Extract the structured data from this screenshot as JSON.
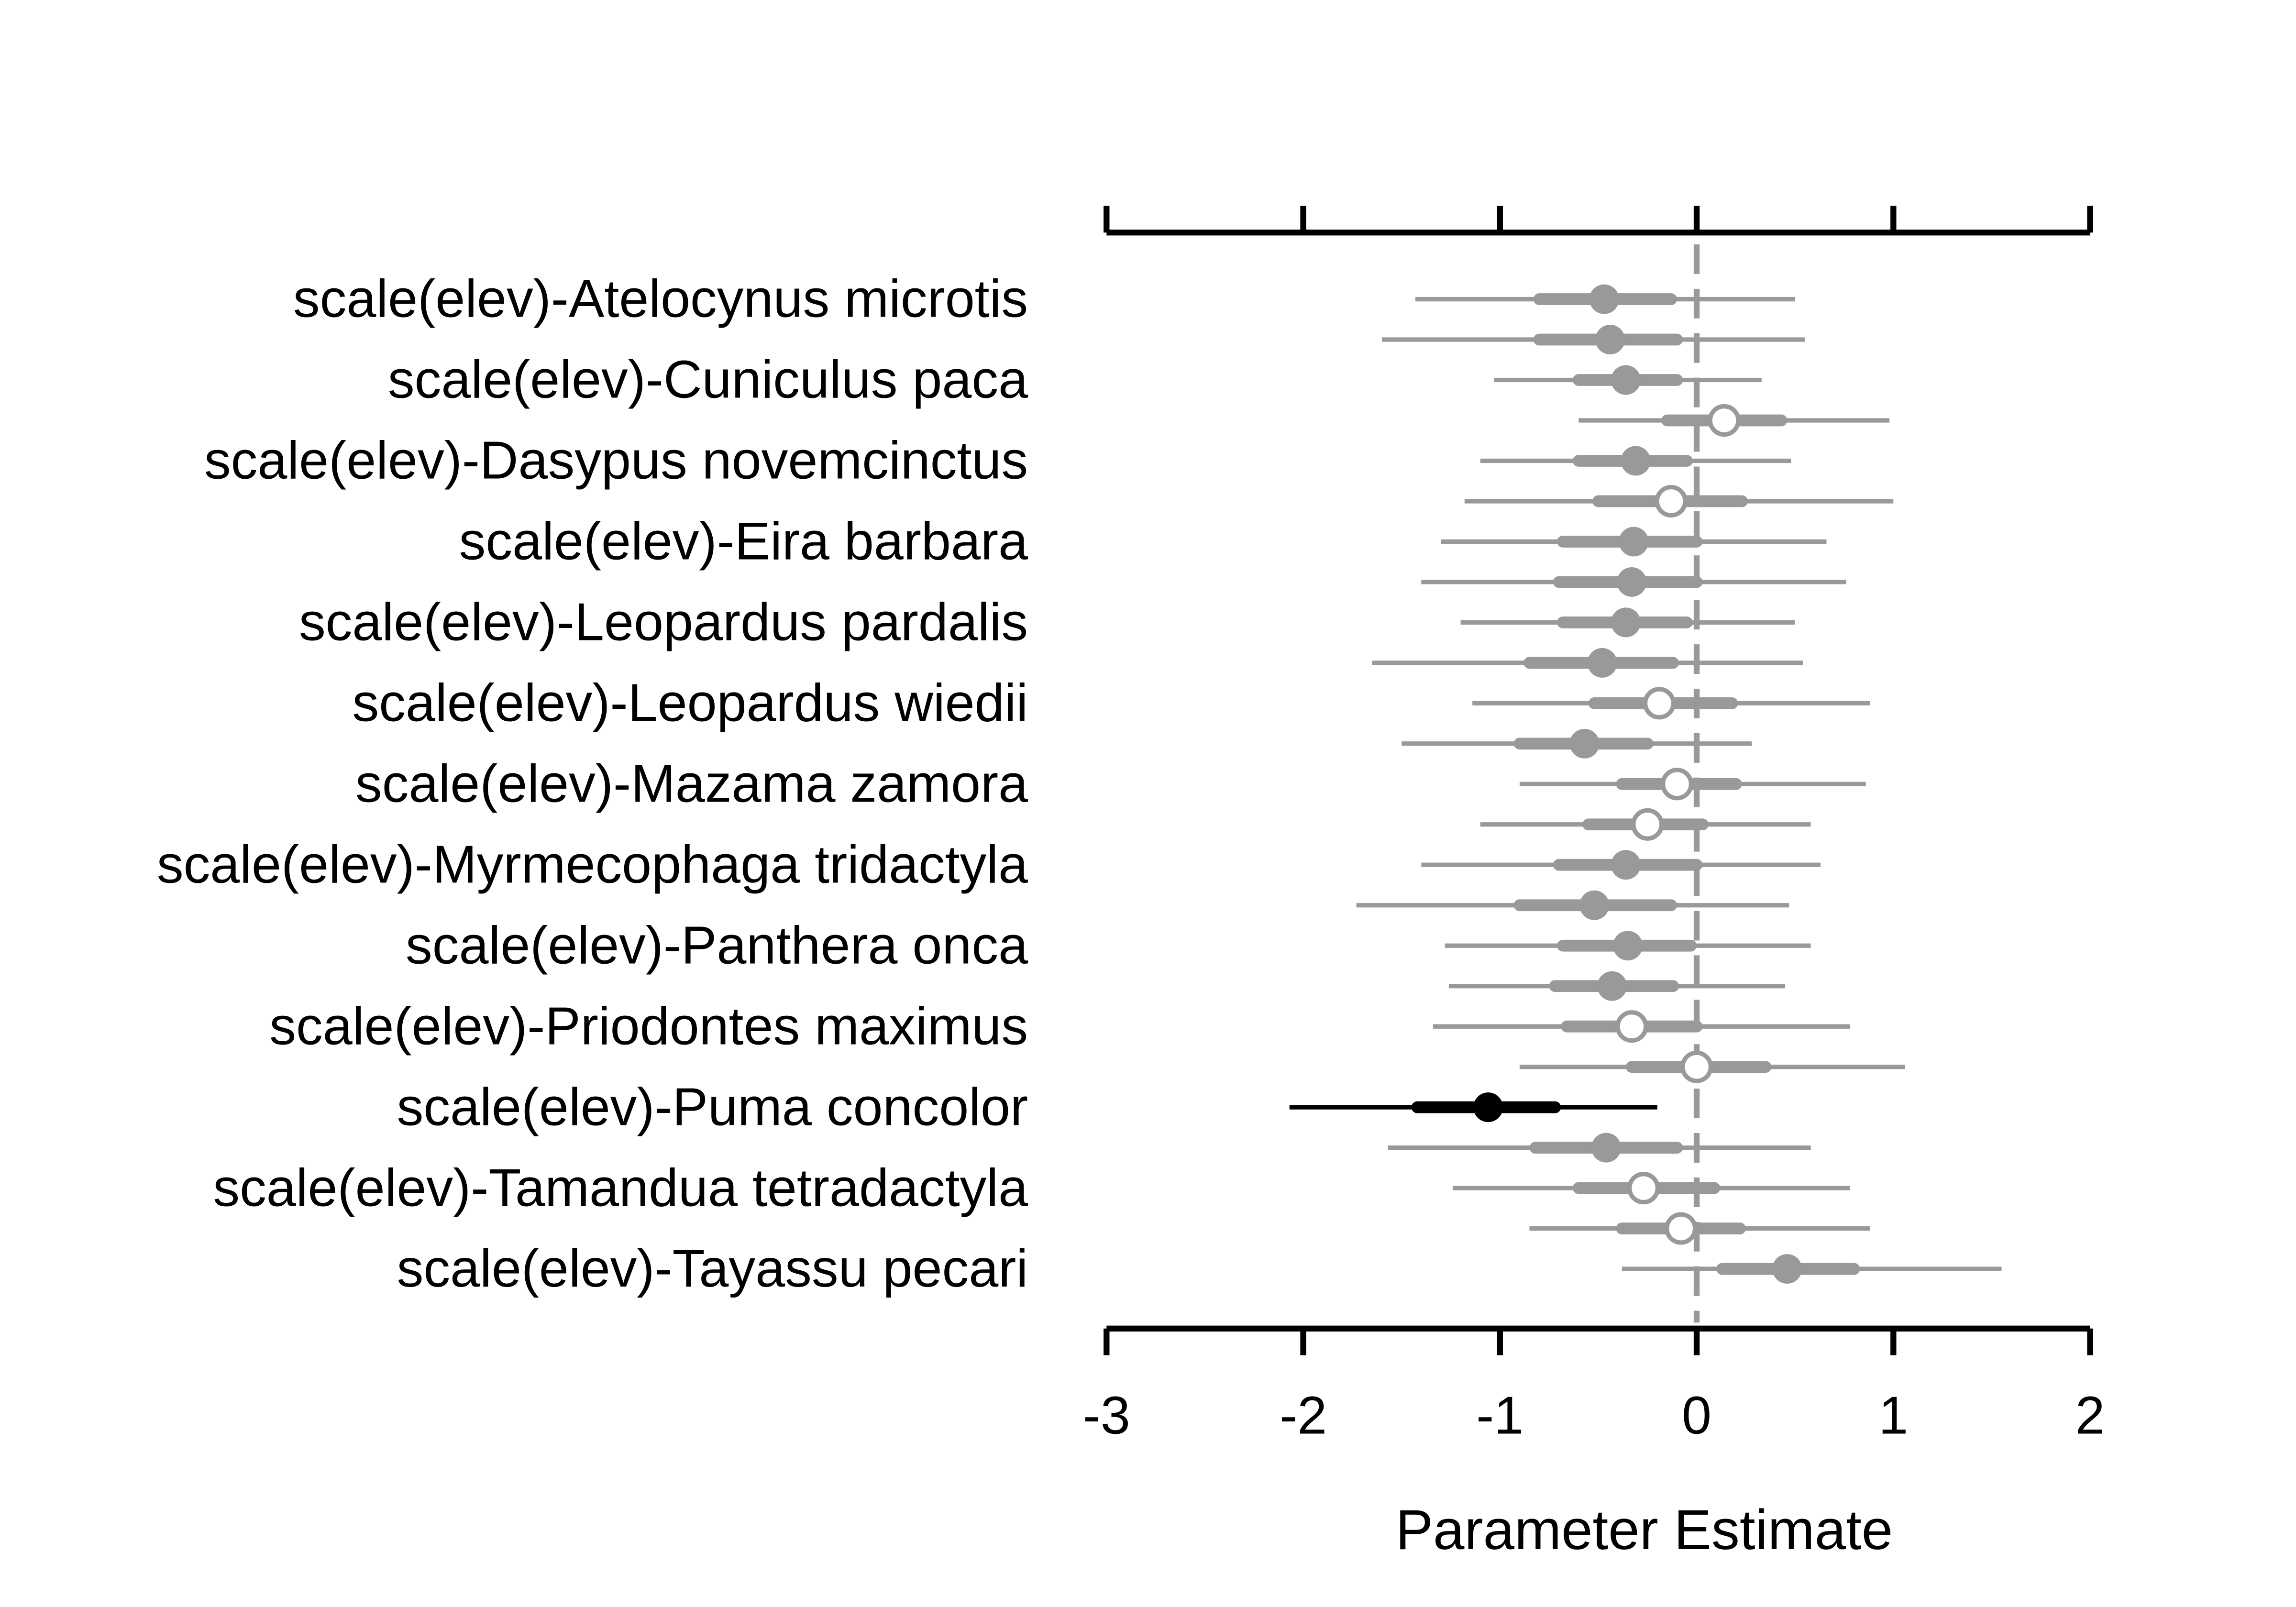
{
  "chart_data": {
    "type": "forest",
    "xlabel": "Parameter Estimate",
    "xlim": [
      -3,
      2
    ],
    "xticks": [
      -3,
      -2,
      -1,
      0,
      1,
      2
    ],
    "xtick_labels": [
      "-3",
      "-2",
      "-1",
      "0",
      "1",
      "2"
    ],
    "reference_line": 0,
    "labels": [
      "scale(elev)-Atelocynus microtis",
      "scale(elev)-Cuniculus paca",
      "scale(elev)-Dasypus novemcinctus",
      "scale(elev)-Eira barbara",
      "scale(elev)-Leopardus pardalis",
      "scale(elev)-Leopardus wiedii",
      "scale(elev)-Mazama zamora",
      "scale(elev)-Myrmecophaga tridactyla",
      "scale(elev)-Panthera onca",
      "scale(elev)-Priodontes maximus",
      "scale(elev)-Puma concolor",
      "scale(elev)-Tamandua tetradactyla",
      "scale(elev)-Tayassu pecari"
    ],
    "colors": {
      "nonsignificant": "#999999",
      "significant": "#000000",
      "open_fill": "#ffffff"
    },
    "rows": [
      {
        "est": -0.47,
        "inner": [
          -0.8,
          -0.13
        ],
        "outer": [
          -1.43,
          0.5
        ],
        "filled": true,
        "sig": false
      },
      {
        "est": -0.44,
        "inner": [
          -0.8,
          -0.1
        ],
        "outer": [
          -1.6,
          0.55
        ],
        "filled": true,
        "sig": false
      },
      {
        "est": -0.36,
        "inner": [
          -0.6,
          -0.1
        ],
        "outer": [
          -1.03,
          0.33
        ],
        "filled": true,
        "sig": false
      },
      {
        "est": 0.14,
        "inner": [
          -0.15,
          0.43
        ],
        "outer": [
          -0.6,
          0.98
        ],
        "filled": false,
        "sig": false
      },
      {
        "est": -0.31,
        "inner": [
          -0.6,
          -0.05
        ],
        "outer": [
          -1.1,
          0.48
        ],
        "filled": true,
        "sig": false
      },
      {
        "est": -0.13,
        "inner": [
          -0.5,
          0.23
        ],
        "outer": [
          -1.18,
          1.0
        ],
        "filled": false,
        "sig": false
      },
      {
        "est": -0.32,
        "inner": [
          -0.68,
          0.0
        ],
        "outer": [
          -1.3,
          0.66
        ],
        "filled": true,
        "sig": false
      },
      {
        "est": -0.33,
        "inner": [
          -0.7,
          0.0
        ],
        "outer": [
          -1.4,
          0.76
        ],
        "filled": true,
        "sig": false
      },
      {
        "est": -0.36,
        "inner": [
          -0.68,
          -0.05
        ],
        "outer": [
          -1.2,
          0.5
        ],
        "filled": true,
        "sig": false
      },
      {
        "est": -0.48,
        "inner": [
          -0.85,
          -0.12
        ],
        "outer": [
          -1.65,
          0.54
        ],
        "filled": true,
        "sig": false
      },
      {
        "est": -0.19,
        "inner": [
          -0.52,
          0.18
        ],
        "outer": [
          -1.14,
          0.88
        ],
        "filled": false,
        "sig": false
      },
      {
        "est": -0.57,
        "inner": [
          -0.9,
          -0.25
        ],
        "outer": [
          -1.5,
          0.28
        ],
        "filled": true,
        "sig": false
      },
      {
        "est": -0.1,
        "inner": [
          -0.38,
          0.2
        ],
        "outer": [
          -0.9,
          0.86
        ],
        "filled": false,
        "sig": false
      },
      {
        "est": -0.25,
        "inner": [
          -0.55,
          0.03
        ],
        "outer": [
          -1.1,
          0.58
        ],
        "filled": false,
        "sig": false
      },
      {
        "est": -0.36,
        "inner": [
          -0.7,
          0.0
        ],
        "outer": [
          -1.4,
          0.63
        ],
        "filled": true,
        "sig": false
      },
      {
        "est": -0.52,
        "inner": [
          -0.9,
          -0.13
        ],
        "outer": [
          -1.73,
          0.47
        ],
        "filled": true,
        "sig": false
      },
      {
        "est": -0.35,
        "inner": [
          -0.68,
          -0.03
        ],
        "outer": [
          -1.28,
          0.58
        ],
        "filled": true,
        "sig": false
      },
      {
        "est": -0.43,
        "inner": [
          -0.72,
          -0.12
        ],
        "outer": [
          -1.26,
          0.45
        ],
        "filled": true,
        "sig": false
      },
      {
        "est": -0.33,
        "inner": [
          -0.66,
          0.0
        ],
        "outer": [
          -1.34,
          0.78
        ],
        "filled": false,
        "sig": false
      },
      {
        "est": 0.0,
        "inner": [
          -0.33,
          0.35
        ],
        "outer": [
          -0.9,
          1.06
        ],
        "filled": false,
        "sig": false
      },
      {
        "est": -1.06,
        "inner": [
          -1.42,
          -0.72
        ],
        "outer": [
          -2.07,
          -0.2
        ],
        "filled": true,
        "sig": true
      },
      {
        "est": -0.46,
        "inner": [
          -0.82,
          -0.1
        ],
        "outer": [
          -1.57,
          0.58
        ],
        "filled": true,
        "sig": false
      },
      {
        "est": -0.27,
        "inner": [
          -0.6,
          0.09
        ],
        "outer": [
          -1.24,
          0.78
        ],
        "filled": false,
        "sig": false
      },
      {
        "est": -0.08,
        "inner": [
          -0.38,
          0.22
        ],
        "outer": [
          -0.85,
          0.88
        ],
        "filled": false,
        "sig": false
      },
      {
        "est": 0.46,
        "inner": [
          0.13,
          0.8
        ],
        "outer": [
          -0.38,
          1.55
        ],
        "filled": true,
        "sig": false
      }
    ]
  }
}
